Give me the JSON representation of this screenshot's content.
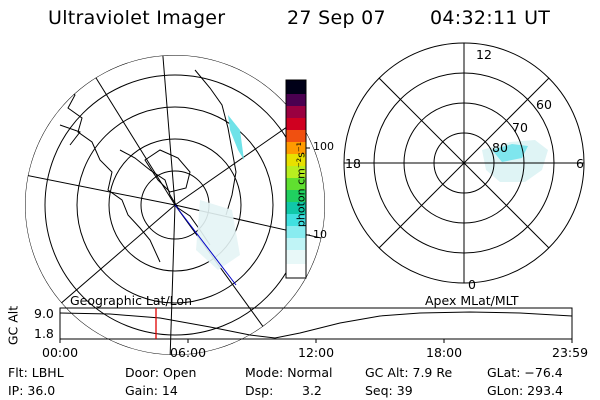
{
  "header": {
    "instrument": "Ultraviolet Imager",
    "date": "27 Sep 07",
    "time": "04:32:11 UT"
  },
  "colorbar": {
    "unit_label": "photon cm⁻²s⁻¹",
    "ticks": [
      "100",
      "10"
    ],
    "scale": "log"
  },
  "polar_plot": {
    "mlt_labels": {
      "top": "12",
      "left": "18",
      "right": "6",
      "bottom": "0"
    },
    "lat_labels": [
      "60",
      "70",
      "80"
    ]
  },
  "map_labels": {
    "left": "Geographic Lat/Lon",
    "right": "Apex MLat/MLT"
  },
  "altitude_plot": {
    "ylabel": "GC Alt",
    "yticks": [
      "9.0",
      "1.8"
    ],
    "xticks": [
      "00:00",
      "06:00",
      "12:00",
      "18:00",
      "23:59"
    ],
    "marker_color": "#e00000"
  },
  "info": {
    "row1": {
      "flt": "Flt: LBHL",
      "door": "Door: Open",
      "mode": "Mode: Normal",
      "gcalt": "GC Alt: 7.9 Re",
      "glat": "GLat: −76.4"
    },
    "row2": {
      "ip": "IP: 36.0",
      "gain": "Gain: 14",
      "dsp_label": "Dsp:",
      "dsp_value": "3.2",
      "seq": "Seq: 39",
      "glon": "GLon: 293.4"
    }
  },
  "colors": {
    "aurora": "#6fe2e8",
    "aurora_pale": "#cfeff2",
    "marker": "#e00000"
  }
}
